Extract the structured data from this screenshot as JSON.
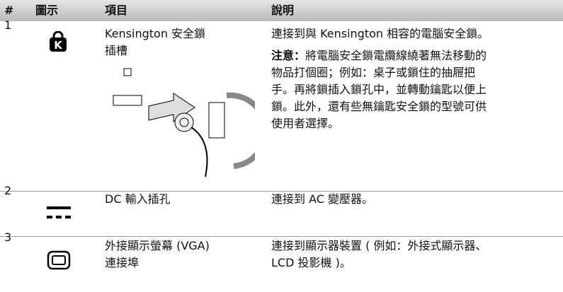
{
  "table": {
    "header": [
      "#",
      "圖示",
      "項目",
      "說明"
    ],
    "rows": [
      {
        "number": "1",
        "item_lines": [
          "Kensington 安全鎖",
          "插槽"
        ],
        "desc_lines": [
          "連接到與 Kensington 相容的電腦安全鎖。"
        ],
        "note_label": "注意：",
        "note_lines": [
          "將電腦安全鎖電纜線繞著無法移動的",
          "物品打個圈；例如：桌子或鎖住的抽屜把",
          "手。再將鎖插入鎖孔中，並轉動鑰匙以便上",
          "鎖。此外，還有些無鑰匙安全鎖的型號可供",
          "使用者選擇。"
        ]
      },
      {
        "number": "2",
        "item_lines": [
          "DC 輸入插孔"
        ],
        "desc_lines": [
          "連接到 AC 變壓器。"
        ]
      },
      {
        "number": "3",
        "item_lines": [
          "外接顯示螢幕 (VGA)",
          "連接埠"
        ],
        "desc_lines": [
          "連接到顯示器裝置 ( 例如：外接式顯示器、",
          "LCD 投影機 )。"
        ]
      }
    ]
  }
}
